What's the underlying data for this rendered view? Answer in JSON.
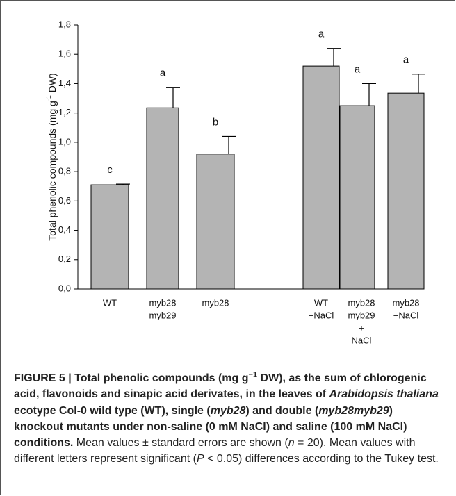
{
  "chart_data": {
    "type": "bar",
    "y_label": [
      "Total phenolic compounds (mg g",
      "-1",
      " DW)"
    ],
    "categories": [
      [
        "WT"
      ],
      [
        "myb28",
        "myb29"
      ],
      [
        "myb28"
      ],
      [
        "WT",
        "+NaCl"
      ],
      [
        "myb28",
        "myb29",
        "+",
        "NaCl"
      ],
      [
        "myb28",
        "+NaCl"
      ]
    ],
    "values": [
      0.71,
      1.235,
      0.92,
      1.52,
      1.25,
      1.335
    ],
    "errors": [
      0.005,
      0.14,
      0.12,
      0.12,
      0.15,
      0.13
    ],
    "letters": [
      "c",
      "a",
      "b",
      "a",
      "a",
      "a"
    ],
    "color": "#b4b4b4",
    "ylim": [
      0,
      1.8
    ],
    "yticks": [
      {
        "value": 0,
        "label": "0,0"
      },
      {
        "value": 0.2,
        "label": "0,2"
      },
      {
        "value": 0.4,
        "label": "0,4"
      },
      {
        "value": 0.6,
        "label": "0,6"
      },
      {
        "value": 0.8,
        "label": "0,8"
      },
      {
        "value": 1.0,
        "label": "1,0"
      },
      {
        "value": 1.2,
        "label": "1,2"
      },
      {
        "value": 1.4,
        "label": "1,4"
      },
      {
        "value": 1.6,
        "label": "1,6"
      },
      {
        "value": 1.8,
        "label": "1,8"
      }
    ]
  },
  "caption": {
    "parts": [
      "FIGURE 5 | Total phenolic compounds (mg g",
      "−1",
      " DW), as the sum of chlorogenic acid, flavonoids and sinapic acid derivates, in the leaves of ",
      "Arabidopsis thaliana",
      " ecotype Col-0 wild type (WT), single (",
      "myb28",
      ") and double (",
      "myb28myb29",
      ") knockout mutants under non-saline (0 mM NaCl) and saline (100 mM NaCl) conditions.",
      " Mean values ± standard errors are shown (",
      "n",
      " = 20). Mean values with different letters represent significant (",
      "P",
      " < 0.05) differences according to the Tukey test."
    ]
  }
}
